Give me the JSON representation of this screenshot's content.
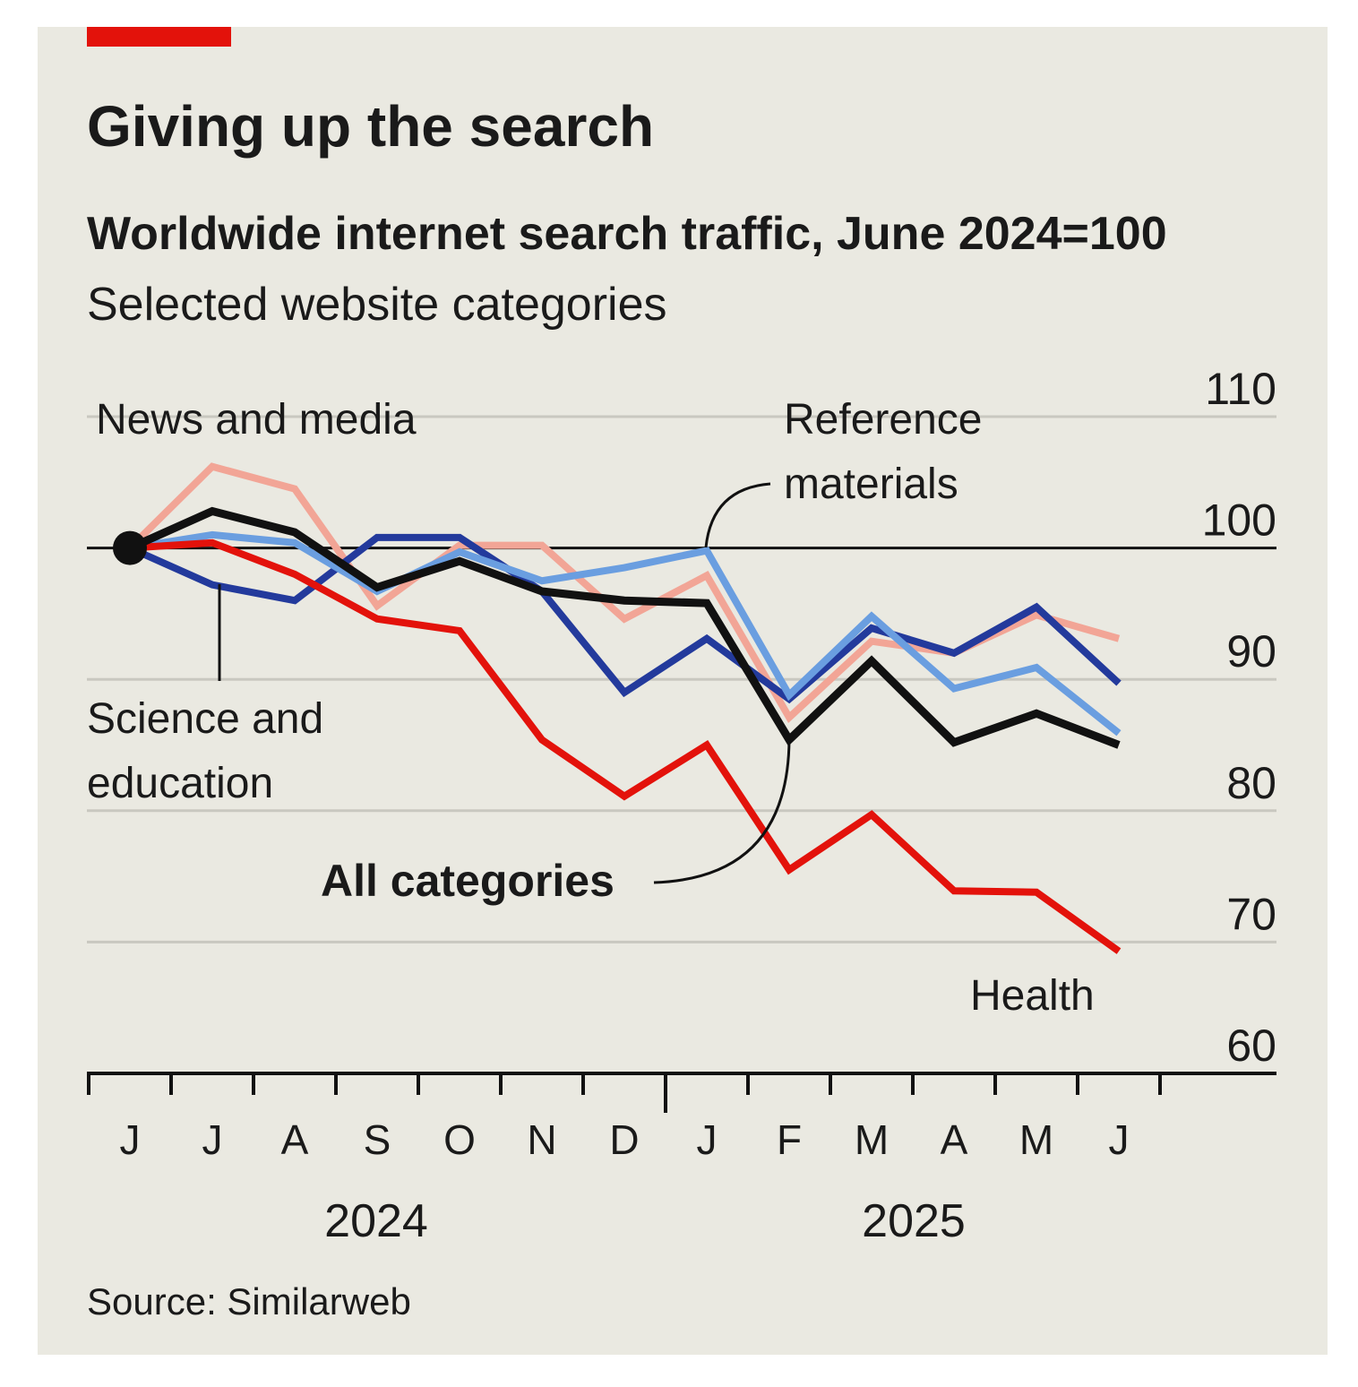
{
  "colors": {
    "background": "#eae9e1",
    "accent": "#e3120b",
    "health": "#e3120b",
    "all": "#111111",
    "news": "#233a9c",
    "science": "#6a9ee0",
    "reference": "#f2a596",
    "grid": "#c9c8c0"
  },
  "chart_data": {
    "type": "line",
    "title": "Giving up the search",
    "subtitle": "Worldwide internet search traffic, June 2024=100",
    "subtitle2": "Selected website categories",
    "source": "Source: Similarweb",
    "xlabel": "",
    "ylabel": "",
    "x": [
      "J",
      "J",
      "A",
      "S",
      "O",
      "N",
      "D",
      "J",
      "F",
      "M",
      "A",
      "M",
      "J"
    ],
    "years": [
      "2024",
      "2025"
    ],
    "ylim": [
      60,
      110
    ],
    "yticks": [
      "60",
      "70",
      "80",
      "90",
      "100",
      "110"
    ],
    "grid": true,
    "series": [
      {
        "key": "reference",
        "name": "Reference materials",
        "values": [
          100,
          106.2,
          104.5,
          95.6,
          100.2,
          100.2,
          94.6,
          97.9,
          87.1,
          92.9,
          92,
          94.9,
          93.1
        ]
      },
      {
        "key": "news",
        "name": "News and media",
        "values": [
          100,
          97.2,
          96,
          100.8,
          100.8,
          96.7,
          89,
          93.1,
          88.5,
          93.9,
          92,
          95.5,
          89.7
        ]
      },
      {
        "key": "science",
        "name": "Science and education",
        "values": [
          100,
          101,
          100.4,
          96.7,
          99.7,
          97.5,
          98.5,
          99.8,
          88.8,
          94.8,
          89.3,
          90.9,
          85.9
        ]
      },
      {
        "key": "health",
        "name": "Health",
        "values": [
          100,
          100.4,
          98,
          94.6,
          93.7,
          85.4,
          81.1,
          85,
          75.5,
          79.7,
          73.9,
          73.8,
          69.3
        ]
      },
      {
        "key": "all",
        "name": "All categories",
        "values": [
          100,
          102.8,
          101.2,
          97,
          99,
          96.7,
          96,
          95.8,
          85.4,
          91.4,
          85.2,
          87.4,
          85
        ]
      }
    ],
    "annotations": {
      "news": "News and media",
      "reference1": "Reference",
      "reference2": "materials",
      "science1": "Science and",
      "science2": "education",
      "all": "All categories",
      "health": "Health"
    }
  }
}
